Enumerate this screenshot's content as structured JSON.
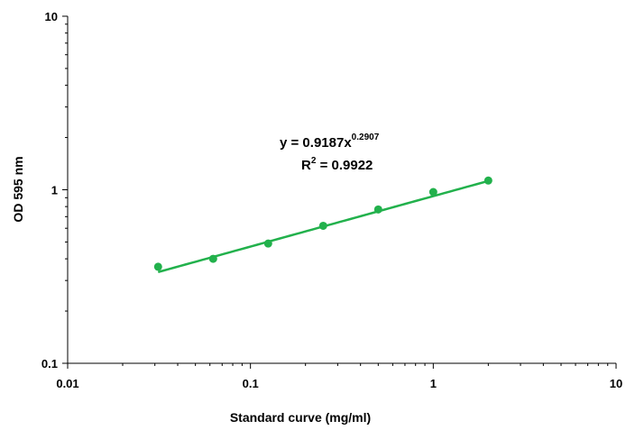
{
  "chart_data": {
    "type": "scatter",
    "xscale": "log",
    "yscale": "log",
    "xlim": [
      0.01,
      10
    ],
    "ylim": [
      0.1,
      10
    ],
    "xlabel": "Standard curve (mg/ml)",
    "ylabel": "OD 595 nm",
    "x_tick_labels": [
      "0.01",
      "0.1",
      "1",
      "10"
    ],
    "y_tick_labels": [
      "0.1",
      "1",
      "10"
    ],
    "grid": false,
    "color": "#22b14c",
    "points": [
      {
        "x": 0.03125,
        "y": 0.36
      },
      {
        "x": 0.0625,
        "y": 0.4
      },
      {
        "x": 0.125,
        "y": 0.49
      },
      {
        "x": 0.25,
        "y": 0.62
      },
      {
        "x": 0.5,
        "y": 0.77
      },
      {
        "x": 1,
        "y": 0.97
      },
      {
        "x": 2,
        "y": 1.13
      }
    ],
    "trendline": {
      "type": "power",
      "coefficient": 0.9187,
      "exponent": 0.2907,
      "x_range": [
        0.03125,
        2
      ],
      "equation_prefix": "y = 0.9187x",
      "equation_exponent": "0.2907",
      "r2_label_prefix": "R",
      "r2_label_sup": "2",
      "r2_label_value": " = 0.9922"
    }
  }
}
